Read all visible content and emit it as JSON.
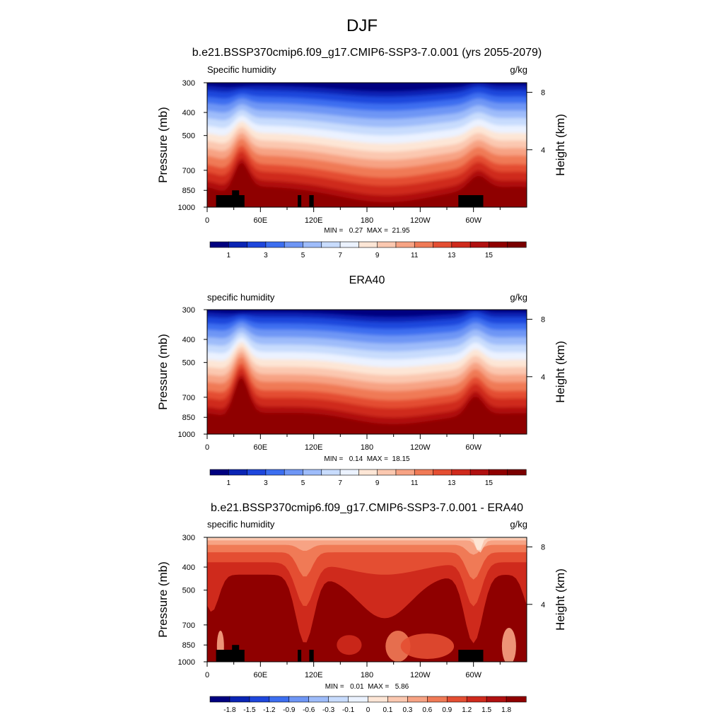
{
  "figure": {
    "title": "DJF"
  },
  "chart_data": [
    {
      "type": "heatmap",
      "title": "b.e21.BSSP370cmip6.f09_g17.CMIP6-SSP3-7.0.001 (yrs 2055-2079)",
      "variable_label": "Specific humidity",
      "units_label": "g/kg",
      "ylabel": "Pressure (mb)",
      "right_label": "Height (km)",
      "y_ticks": [
        "300",
        "400",
        "500",
        "700",
        "850",
        "1000"
      ],
      "y_tick_values": [
        300,
        400,
        500,
        700,
        850,
        1000
      ],
      "right_ticks": [
        "8",
        "4"
      ],
      "right_tick_values": [
        8,
        4
      ],
      "x_ticks": [
        "0",
        "60E",
        "120E",
        "180",
        "120W",
        "60W"
      ],
      "x_tick_values": [
        0,
        60,
        120,
        180,
        240,
        300
      ],
      "xlim": [
        0,
        360
      ],
      "ylim": [
        1000,
        300
      ],
      "minmax_text": "MIN =   0.27  MAX =  21.95",
      "colorbar": {
        "labels": [
          "1",
          "3",
          "5",
          "7",
          "9",
          "11",
          "13",
          "15"
        ],
        "label_slots": [
          1,
          3,
          5,
          7,
          9,
          11,
          13,
          15
        ],
        "levels": [
          0,
          1,
          2,
          3,
          4,
          5,
          6,
          7,
          8,
          9,
          10,
          11,
          12,
          13,
          14,
          15
        ],
        "colors": [
          "#00007f",
          "#0a24b4",
          "#1e46dc",
          "#3c6ef0",
          "#6e96f5",
          "#9ebcfa",
          "#c8dcfd",
          "#ebf2ff",
          "#fde6d6",
          "#fbc8b0",
          "#f7a384",
          "#f07a56",
          "#e44e32",
          "#cf2a1c",
          "#b01010",
          "#8f0000",
          "#7a0000"
        ]
      }
    },
    {
      "type": "heatmap",
      "title": "ERA40",
      "variable_label": "specific humidity",
      "units_label": "g/kg",
      "ylabel": "Pressure (mb)",
      "right_label": "Height (km)",
      "y_ticks": [
        "300",
        "400",
        "500",
        "700",
        "850",
        "1000"
      ],
      "y_tick_values": [
        300,
        400,
        500,
        700,
        850,
        1000
      ],
      "right_ticks": [
        "8",
        "4"
      ],
      "right_tick_values": [
        8,
        4
      ],
      "x_ticks": [
        "0",
        "60E",
        "120E",
        "180",
        "120W",
        "60W"
      ],
      "x_tick_values": [
        0,
        60,
        120,
        180,
        240,
        300
      ],
      "xlim": [
        0,
        360
      ],
      "ylim": [
        1000,
        300
      ],
      "minmax_text": "MIN =   0.14  MAX =  18.15",
      "colorbar": {
        "labels": [
          "1",
          "3",
          "5",
          "7",
          "9",
          "11",
          "13",
          "15"
        ],
        "label_slots": [
          1,
          3,
          5,
          7,
          9,
          11,
          13,
          15
        ],
        "levels": [
          0,
          1,
          2,
          3,
          4,
          5,
          6,
          7,
          8,
          9,
          10,
          11,
          12,
          13,
          14,
          15
        ],
        "colors": [
          "#00007f",
          "#0a24b4",
          "#1e46dc",
          "#3c6ef0",
          "#6e96f5",
          "#9ebcfa",
          "#c8dcfd",
          "#ebf2ff",
          "#fde6d6",
          "#fbc8b0",
          "#f7a384",
          "#f07a56",
          "#e44e32",
          "#cf2a1c",
          "#b01010",
          "#8f0000",
          "#7a0000"
        ]
      }
    },
    {
      "type": "heatmap",
      "title": "b.e21.BSSP370cmip6.f09_g17.CMIP6-SSP3-7.0.001 - ERA40",
      "variable_label": "specific humidity",
      "units_label": "g/kg",
      "ylabel": "Pressure (mb)",
      "right_label": "Height (km)",
      "y_ticks": [
        "300",
        "400",
        "500",
        "700",
        "850",
        "1000"
      ],
      "y_tick_values": [
        300,
        400,
        500,
        700,
        850,
        1000
      ],
      "right_ticks": [
        "8",
        "4"
      ],
      "right_tick_values": [
        8,
        4
      ],
      "x_ticks": [
        "0",
        "60E",
        "120E",
        "180",
        "120W",
        "60W"
      ],
      "x_tick_values": [
        0,
        60,
        120,
        180,
        240,
        300
      ],
      "xlim": [
        0,
        360
      ],
      "ylim": [
        1000,
        300
      ],
      "minmax_text": "MIN =   0.01  MAX =   5.86",
      "colorbar": {
        "labels": [
          "-1.8",
          "-1.5",
          "-1.2",
          "-0.9",
          "-0.6",
          "-0.3",
          "-0.1",
          "0",
          "0.1",
          "0.3",
          "0.6",
          "0.9",
          "1.2",
          "1.5",
          "1.8"
        ],
        "label_slots": [
          1,
          2,
          3,
          4,
          5,
          6,
          7,
          8,
          9,
          10,
          11,
          12,
          13,
          14,
          15
        ],
        "levels": [
          -1.8,
          -1.5,
          -1.2,
          -0.9,
          -0.6,
          -0.3,
          -0.1,
          0,
          0.1,
          0.3,
          0.6,
          0.9,
          1.2,
          1.5,
          1.8
        ],
        "colors": [
          "#00007f",
          "#0a24b4",
          "#1e46dc",
          "#3c6ef0",
          "#6e96f5",
          "#9ebcfa",
          "#c8dcfd",
          "#ebf2ff",
          "#fde6d6",
          "#fbc8b0",
          "#f7a384",
          "#f07a56",
          "#e44e32",
          "#cf2a1c",
          "#b01010",
          "#8f0000"
        ]
      }
    }
  ]
}
